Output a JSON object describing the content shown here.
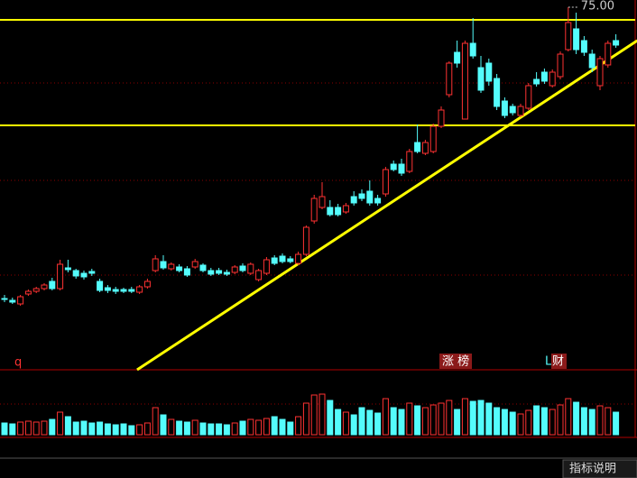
{
  "chart_data": {
    "type": "candlestick",
    "ylim": [
      34.8,
      75.8
    ],
    "ohlc": [
      [
        42.7,
        43.1,
        42.3,
        42.7
      ],
      [
        42.5,
        42.8,
        42.1,
        42.3
      ],
      [
        42.1,
        43.1,
        41.9,
        42.9
      ],
      [
        43.2,
        43.7,
        43.0,
        43.5
      ],
      [
        43.5,
        44.0,
        43.3,
        43.8
      ],
      [
        43.8,
        44.4,
        43.6,
        44.2
      ],
      [
        44.6,
        45.0,
        43.6,
        43.8
      ],
      [
        43.8,
        47.0,
        43.6,
        46.5
      ],
      [
        46.1,
        47.0,
        45.6,
        45.9
      ],
      [
        45.8,
        46.0,
        44.9,
        45.2
      ],
      [
        45.5,
        45.8,
        44.8,
        45.1
      ],
      [
        45.7,
        46.0,
        45.2,
        45.5
      ],
      [
        44.6,
        44.9,
        43.4,
        43.6
      ],
      [
        43.9,
        44.2,
        43.3,
        43.6
      ],
      [
        43.7,
        44.0,
        43.2,
        43.5
      ],
      [
        43.7,
        43.9,
        43.3,
        43.5
      ],
      [
        43.7,
        44.0,
        43.3,
        43.5
      ],
      [
        43.4,
        44.2,
        43.2,
        44.0
      ],
      [
        44.0,
        44.9,
        43.8,
        44.6
      ],
      [
        45.8,
        47.5,
        45.6,
        47.1
      ],
      [
        46.8,
        47.5,
        45.9,
        46.1
      ],
      [
        46.0,
        46.7,
        45.8,
        46.5
      ],
      [
        46.2,
        46.5,
        45.6,
        45.8
      ],
      [
        46.0,
        46.3,
        45.1,
        45.3
      ],
      [
        46.2,
        47.1,
        46.0,
        46.8
      ],
      [
        46.4,
        46.6,
        45.6,
        45.8
      ],
      [
        45.8,
        46.1,
        45.2,
        45.4
      ],
      [
        45.8,
        46.1,
        45.3,
        45.5
      ],
      [
        45.6,
        45.9,
        45.2,
        45.4
      ],
      [
        45.6,
        46.4,
        45.4,
        46.2
      ],
      [
        46.3,
        46.6,
        45.6,
        45.8
      ],
      [
        45.5,
        46.7,
        45.3,
        46.5
      ],
      [
        44.8,
        46.0,
        44.6,
        45.8
      ],
      [
        45.5,
        47.3,
        45.3,
        47.0
      ],
      [
        47.2,
        47.5,
        46.4,
        46.6
      ],
      [
        47.4,
        47.7,
        46.6,
        46.8
      ],
      [
        47.1,
        47.4,
        46.6,
        46.8
      ],
      [
        46.6,
        47.9,
        46.4,
        47.6
      ],
      [
        47.6,
        50.8,
        47.4,
        50.6
      ],
      [
        51.3,
        54.2,
        51.0,
        53.8
      ],
      [
        52.8,
        55.6,
        52.6,
        54.0
      ],
      [
        52.8,
        53.6,
        51.8,
        52.0
      ],
      [
        52.8,
        53.2,
        51.8,
        52.0
      ],
      [
        52.3,
        53.3,
        52.1,
        53.0
      ],
      [
        54.0,
        54.6,
        53.0,
        53.3
      ],
      [
        54.3,
        54.8,
        53.5,
        53.8
      ],
      [
        54.6,
        55.8,
        53.0,
        53.3
      ],
      [
        53.8,
        54.2,
        53.0,
        53.3
      ],
      [
        54.3,
        57.3,
        54.0,
        57.0
      ],
      [
        57.6,
        58.0,
        56.8,
        57.0
      ],
      [
        57.6,
        58.2,
        56.3,
        56.6
      ],
      [
        56.8,
        59.3,
        56.6,
        59.0
      ],
      [
        60.0,
        62.0,
        58.8,
        59.0
      ],
      [
        58.8,
        60.3,
        58.6,
        60.0
      ],
      [
        59.0,
        62.1,
        58.8,
        61.8
      ],
      [
        61.8,
        64.0,
        61.6,
        63.6
      ],
      [
        65.3,
        69.0,
        65.0,
        68.8
      ],
      [
        70.0,
        71.3,
        68.3,
        68.8
      ],
      [
        62.6,
        71.3,
        62.6,
        71.0
      ],
      [
        71.0,
        73.8,
        69.3,
        69.6
      ],
      [
        68.3,
        69.6,
        65.5,
        65.8
      ],
      [
        68.8,
        69.3,
        66.3,
        66.8
      ],
      [
        67.1,
        67.6,
        63.6,
        64.0
      ],
      [
        64.6,
        65.0,
        62.7,
        63.0
      ],
      [
        64.0,
        64.3,
        63.0,
        63.3
      ],
      [
        63.0,
        64.3,
        62.8,
        64.0
      ],
      [
        63.8,
        66.6,
        63.6,
        66.3
      ],
      [
        67.0,
        67.8,
        66.2,
        66.5
      ],
      [
        67.8,
        68.2,
        66.5,
        66.8
      ],
      [
        66.3,
        68.1,
        66.1,
        67.8
      ],
      [
        67.3,
        70.1,
        67.0,
        69.8
      ],
      [
        70.3,
        75.0,
        70.1,
        73.3
      ],
      [
        72.6,
        74.4,
        69.8,
        70.3
      ],
      [
        71.3,
        71.8,
        69.6,
        70.0
      ],
      [
        69.8,
        70.3,
        67.8,
        68.3
      ],
      [
        66.3,
        69.6,
        65.8,
        69.3
      ],
      [
        68.6,
        71.3,
        68.3,
        71.0
      ],
      [
        71.3,
        72.0,
        70.5,
        70.8
      ]
    ],
    "up_color": "#ff3232",
    "down_color": "#54fcfc",
    "max_label": "75.00",
    "hlines": [
      73.6,
      61.9
    ],
    "line_color": "#ffff00",
    "trendline": {
      "x": [
        16.7,
        79.7
      ],
      "y": [
        34.8,
        71.3
      ]
    },
    "volume": {
      "ylim": [
        0,
        70
      ],
      "values": [
        13,
        12,
        14,
        15,
        14,
        15,
        17,
        25,
        20,
        14,
        15,
        13,
        14,
        12,
        11,
        12,
        10,
        11,
        13,
        30,
        22,
        17,
        15,
        14,
        16,
        13,
        12,
        12,
        11,
        13,
        15,
        17,
        16,
        18,
        20,
        17,
        14,
        20,
        35,
        44,
        45,
        38,
        28,
        25,
        22,
        30,
        27,
        24,
        40,
        30,
        28,
        35,
        32,
        30,
        33,
        35,
        38,
        28,
        40,
        37,
        38,
        35,
        30,
        28,
        25,
        23,
        27,
        32,
        30,
        28,
        33,
        40,
        36,
        30,
        28,
        32,
        30,
        25
      ]
    },
    "markers": [
      "q",
      "涨 榜",
      "L",
      "财"
    ],
    "footer": "指标说明"
  }
}
